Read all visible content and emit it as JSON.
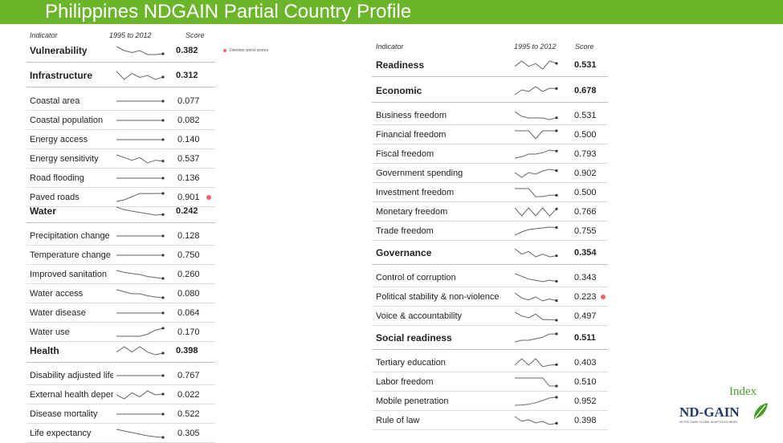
{
  "title": "Philippines NDGAIN Partial Country Profile",
  "legend": {
    "text": "Denotes worst scores",
    "color": "#f0616a"
  },
  "logo": {
    "index": "Index",
    "name": "ND-GAIN",
    "tagline": "NOTRE DAME GLOBAL ADAPTATION INDEX"
  },
  "left": {
    "headers": {
      "indicator": "Indicator",
      "period": "1995 to 2012",
      "score": "Score"
    },
    "rows": [
      {
        "label": "Vulnerability",
        "score": "0.382",
        "type": "section",
        "trend": [
          0.4,
          0.39,
          0.385,
          0.39,
          0.38,
          0.38,
          0.382
        ]
      },
      {
        "label": "Infrastructure",
        "score": "0.312",
        "type": "section",
        "trend": [
          0.34,
          0.3,
          0.33,
          0.31,
          0.32,
          0.3,
          0.312
        ]
      },
      {
        "label": "Coastal area",
        "score": "0.077",
        "type": "item",
        "trend": [
          0.077,
          0.077,
          0.077,
          0.077,
          0.077,
          0.077,
          0.077
        ]
      },
      {
        "label": "Coastal population",
        "score": "0.082",
        "type": "item",
        "trend": [
          0.082,
          0.082,
          0.082,
          0.082,
          0.082,
          0.082,
          0.082
        ]
      },
      {
        "label": "Energy access",
        "score": "0.140",
        "type": "item",
        "trend": [
          0.14,
          0.14,
          0.14,
          0.14,
          0.14,
          0.14,
          0.14
        ]
      },
      {
        "label": "Energy sensitivity",
        "score": "0.537",
        "type": "item",
        "trend": [
          0.56,
          0.55,
          0.54,
          0.55,
          0.53,
          0.54,
          0.537
        ]
      },
      {
        "label": "Road flooding",
        "score": "0.136",
        "type": "item",
        "trend": [
          0.136,
          0.136,
          0.136,
          0.136,
          0.136,
          0.136,
          0.136
        ]
      },
      {
        "label": "Paved roads",
        "score": "0.901",
        "type": "item",
        "worst": true,
        "trend": [
          0.8,
          0.82,
          0.86,
          0.9,
          0.9,
          0.9,
          0.901
        ]
      },
      {
        "label": "Water",
        "score": "0.242",
        "type": "section",
        "trend": [
          0.27,
          0.26,
          0.255,
          0.25,
          0.245,
          0.24,
          0.242
        ]
      },
      {
        "label": "Precipitation change",
        "score": "0.128",
        "type": "item",
        "trend": [
          0.128,
          0.128,
          0.128,
          0.128,
          0.128,
          0.128,
          0.128
        ]
      },
      {
        "label": "Temperature change",
        "score": "0.750",
        "type": "item",
        "trend": [
          0.75,
          0.75,
          0.75,
          0.75,
          0.75,
          0.75,
          0.75
        ]
      },
      {
        "label": "Improved sanitation",
        "score": "0.260",
        "type": "item",
        "trend": [
          0.3,
          0.29,
          0.285,
          0.28,
          0.27,
          0.265,
          0.26
        ]
      },
      {
        "label": "Water access",
        "score": "0.080",
        "type": "item",
        "trend": [
          0.1,
          0.095,
          0.09,
          0.09,
          0.085,
          0.082,
          0.08
        ]
      },
      {
        "label": "Water disease",
        "score": "0.064",
        "type": "item",
        "trend": [
          0.064,
          0.064,
          0.064,
          0.064,
          0.064,
          0.064,
          0.064
        ]
      },
      {
        "label": "Water use",
        "score": "0.170",
        "type": "item",
        "trend": [
          0.15,
          0.15,
          0.15,
          0.15,
          0.155,
          0.165,
          0.17
        ]
      },
      {
        "label": "Health",
        "score": "0.398",
        "type": "section",
        "trend": [
          0.4,
          0.41,
          0.4,
          0.41,
          0.4,
          0.395,
          0.398
        ]
      },
      {
        "label": "Disability adjusted life",
        "score": "0.767",
        "type": "item",
        "trend": [
          0.767,
          0.767,
          0.767,
          0.767,
          0.767,
          0.767,
          0.767
        ]
      },
      {
        "label": "External health dependence",
        "score": "0.022",
        "type": "item",
        "trend": [
          0.02,
          0.01,
          0.025,
          0.015,
          0.03,
          0.02,
          0.022
        ]
      },
      {
        "label": "Disease mortality",
        "score": "0.522",
        "type": "item",
        "trend": [
          0.522,
          0.522,
          0.522,
          0.522,
          0.522,
          0.522,
          0.522
        ]
      },
      {
        "label": "Life expectancy",
        "score": "0.305",
        "type": "item",
        "trend": [
          0.33,
          0.325,
          0.32,
          0.315,
          0.31,
          0.307,
          0.305
        ]
      }
    ]
  },
  "right": {
    "headers": {
      "indicator": "Indicator",
      "period": "1995 to 2012",
      "score": "Score"
    },
    "rows": [
      {
        "label": "Readiness",
        "score": "0.531",
        "type": "section",
        "trend": [
          0.52,
          0.54,
          0.52,
          0.53,
          0.51,
          0.54,
          0.531
        ]
      },
      {
        "label": "Economic",
        "score": "0.678",
        "type": "section",
        "trend": [
          0.64,
          0.67,
          0.66,
          0.69,
          0.66,
          0.68,
          0.678
        ]
      },
      {
        "label": "Business freedom",
        "score": "0.531",
        "type": "item",
        "trend": [
          0.57,
          0.54,
          0.53,
          0.53,
          0.53,
          0.52,
          0.531
        ]
      },
      {
        "label": "Financial freedom",
        "score": "0.500",
        "type": "item",
        "trend": [
          0.5,
          0.5,
          0.5,
          0.4,
          0.5,
          0.5,
          0.5
        ]
      },
      {
        "label": "Fiscal freedom",
        "score": "0.793",
        "type": "item",
        "trend": [
          0.74,
          0.75,
          0.77,
          0.77,
          0.78,
          0.8,
          0.793
        ]
      },
      {
        "label": "Government spending",
        "score": "0.902",
        "type": "item",
        "trend": [
          0.89,
          0.86,
          0.89,
          0.88,
          0.9,
          0.91,
          0.902
        ]
      },
      {
        "label": "Investment freedom",
        "score": "0.500",
        "type": "item",
        "trend": [
          0.6,
          0.6,
          0.6,
          0.48,
          0.48,
          0.5,
          0.5
        ]
      },
      {
        "label": "Monetary freedom",
        "score": "0.766",
        "type": "item",
        "trend": [
          0.77,
          0.74,
          0.77,
          0.74,
          0.77,
          0.74,
          0.766
        ]
      },
      {
        "label": "Trade freedom",
        "score": "0.755",
        "type": "item",
        "trend": [
          0.66,
          0.7,
          0.73,
          0.74,
          0.75,
          0.76,
          0.755
        ]
      },
      {
        "label": "Governance",
        "score": "0.354",
        "type": "section",
        "trend": [
          0.38,
          0.36,
          0.37,
          0.35,
          0.36,
          0.35,
          0.354
        ]
      },
      {
        "label": "Control of corruption",
        "score": "0.343",
        "type": "item",
        "trend": [
          0.4,
          0.38,
          0.36,
          0.35,
          0.34,
          0.35,
          0.343
        ]
      },
      {
        "label": "Political stability & non-violence",
        "score": "0.223",
        "type": "item",
        "worst": true,
        "trend": [
          0.3,
          0.25,
          0.23,
          0.26,
          0.22,
          0.24,
          0.223
        ]
      },
      {
        "label": "Voice & accountability",
        "score": "0.497",
        "type": "item",
        "trend": [
          0.54,
          0.52,
          0.51,
          0.53,
          0.5,
          0.5,
          0.497
        ]
      },
      {
        "label": "Social readiness",
        "score": "0.511",
        "type": "section",
        "trend": [
          0.46,
          0.47,
          0.47,
          0.48,
          0.49,
          0.51,
          0.511
        ]
      },
      {
        "label": "Tertiary education",
        "score": "0.403",
        "type": "item",
        "trend": [
          0.4,
          0.44,
          0.4,
          0.44,
          0.39,
          0.4,
          0.403
        ]
      },
      {
        "label": "Labor freedom",
        "score": "0.510",
        "type": "item",
        "trend": [
          0.53,
          0.53,
          0.53,
          0.53,
          0.53,
          0.51,
          0.51
        ]
      },
      {
        "label": "Mobile penetration",
        "score": "0.952",
        "type": "item",
        "trend": [
          0.7,
          0.71,
          0.73,
          0.78,
          0.85,
          0.93,
          0.952
        ]
      },
      {
        "label": "Rule of law",
        "score": "0.398",
        "type": "item",
        "trend": [
          0.44,
          0.41,
          0.42,
          0.4,
          0.41,
          0.39,
          0.398
        ]
      }
    ]
  }
}
